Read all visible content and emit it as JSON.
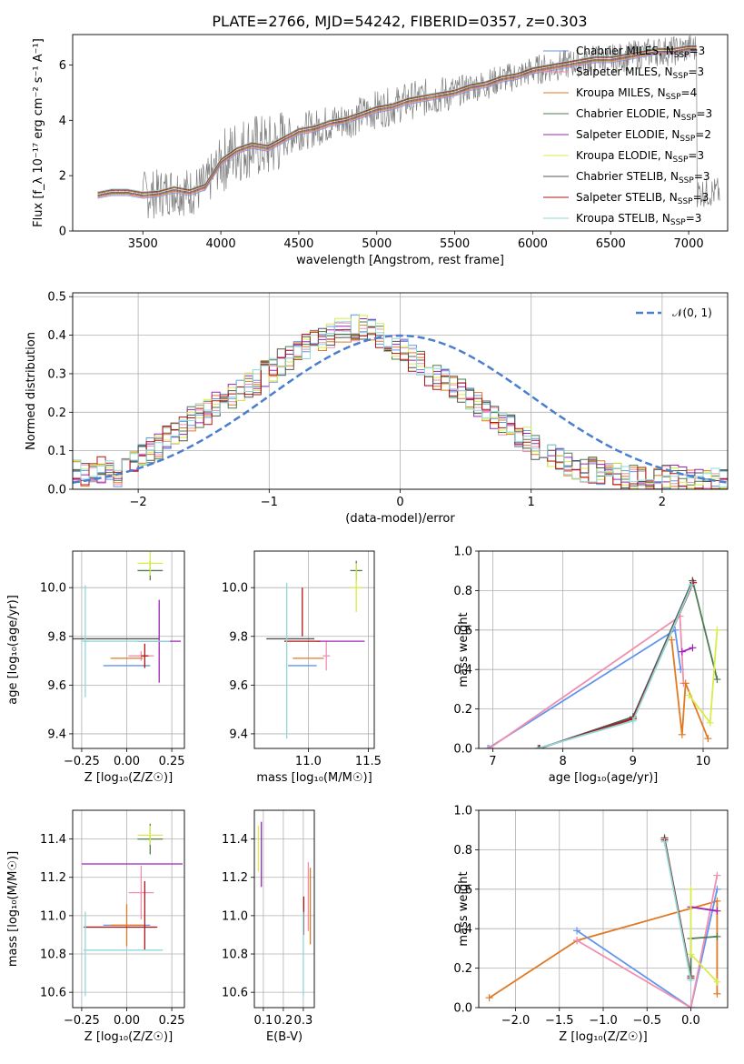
{
  "title": "PLATE=2766, MJD=54242, FIBERID=0357, z=0.303",
  "series": [
    {
      "name": "Chabrier MILES",
      "nssp": "3",
      "color": "#6495ed"
    },
    {
      "name": "Salpeter MILES",
      "nssp": "3",
      "color": "#f08fb0"
    },
    {
      "name": "Kroupa MILES",
      "nssp": "4",
      "color": "#e07a24"
    },
    {
      "name": "Chabrier ELODIE",
      "nssp": "3",
      "color": "#4e7d52"
    },
    {
      "name": "Salpeter ELODIE",
      "nssp": "2",
      "color": "#9b26b6"
    },
    {
      "name": "Kroupa ELODIE",
      "nssp": "3",
      "color": "#d8ec4a"
    },
    {
      "name": "Chabrier STELIB",
      "nssp": "3",
      "color": "#555555"
    },
    {
      "name": "Salpeter STELIB",
      "nssp": "3",
      "color": "#b01515"
    },
    {
      "name": "Kroupa STELIB",
      "nssp": "3",
      "color": "#8fd8d8"
    }
  ],
  "chart_data": [
    {
      "id": "spectrum",
      "type": "line",
      "xlabel": "wavelength [Angstrom, rest frame]",
      "ylabel": "Flux [f_λ 10⁻¹⁷ erg cm⁻² s⁻¹ A⁻¹]",
      "xlim": [
        3050,
        7250
      ],
      "ylim": [
        0,
        7.1
      ],
      "xticks": [
        3500,
        4000,
        4500,
        5000,
        5500,
        6000,
        6500,
        7000
      ],
      "yticks": [
        0,
        2,
        4,
        6
      ],
      "data_color": "#7f7f7f",
      "model_curve": {
        "x": [
          3210,
          3300,
          3400,
          3500,
          3600,
          3700,
          3800,
          3900,
          4000,
          4100,
          4200,
          4300,
          4400,
          4500,
          4600,
          4700,
          4800,
          4900,
          5000,
          5100,
          5200,
          5300,
          5400,
          5500,
          5600,
          5700,
          5800,
          5900,
          6000,
          6100,
          6200,
          6300,
          6400,
          6500,
          6600,
          6700,
          6800,
          6900,
          7000,
          7050
        ],
        "y": [
          1.3,
          1.4,
          1.4,
          1.3,
          1.35,
          1.5,
          1.4,
          1.6,
          2.5,
          2.9,
          3.1,
          3.0,
          3.3,
          3.6,
          3.7,
          3.9,
          4.0,
          4.2,
          4.4,
          4.5,
          4.7,
          4.8,
          4.9,
          5.0,
          5.2,
          5.3,
          5.5,
          5.6,
          5.8,
          5.9,
          6.0,
          6.1,
          6.2,
          6.2,
          6.3,
          6.4,
          6.5,
          6.5,
          6.6,
          6.6
        ]
      }
    },
    {
      "id": "residuals",
      "type": "histogram",
      "xlabel": "(data-model)/error",
      "ylabel": "Normed distribution",
      "xlim": [
        -2.5,
        2.5
      ],
      "ylim": [
        0,
        0.51
      ],
      "xticks": [
        -2,
        -1,
        0,
        1,
        2
      ],
      "yticks": [
        0.0,
        0.1,
        0.2,
        0.3,
        0.4,
        0.5
      ],
      "normal_label": "𝒩(0, 1)",
      "normal_color": "#4a7fd0",
      "bin_width": 0.1,
      "bin_start": -2.5,
      "hist_mean": [
        0.05,
        0.04,
        0.04,
        0.05,
        0.05,
        0.04,
        0.06,
        0.07,
        0.09,
        0.1,
        0.11,
        0.13,
        0.14,
        0.16,
        0.18,
        0.19,
        0.2,
        0.22,
        0.23,
        0.24,
        0.26,
        0.27,
        0.28,
        0.3,
        0.31,
        0.33,
        0.34,
        0.35,
        0.37,
        0.38,
        0.39,
        0.4,
        0.41,
        0.41,
        0.42,
        0.42,
        0.41,
        0.4,
        0.38,
        0.37,
        0.36,
        0.34,
        0.33,
        0.3,
        0.29,
        0.28,
        0.27,
        0.26,
        0.24,
        0.22,
        0.21,
        0.19,
        0.17,
        0.16,
        0.14,
        0.13,
        0.11,
        0.1,
        0.09,
        0.08,
        0.07,
        0.06,
        0.05,
        0.05,
        0.04,
        0.04,
        0.04,
        0.03,
        0.03,
        0.03,
        0.03,
        0.03,
        0.03,
        0.03,
        0.03,
        0.02,
        0.02,
        0.02,
        0.02,
        0.02
      ]
    },
    {
      "id": "age-vs-z",
      "type": "errorbar",
      "xlabel": "Z [log₁₀(Z/Z☉)]",
      "ylabel": "age  [log₁₀(age/yr)]",
      "xlim": [
        -0.3,
        0.32
      ],
      "ylim": [
        9.34,
        10.15
      ],
      "xticks": [
        -0.25,
        0.0,
        0.25
      ],
      "yticks": [
        9.4,
        9.6,
        9.8,
        10.0
      ],
      "points": [
        {
          "s": 0,
          "x": 0.0,
          "xe": 0.13,
          "y": 9.68,
          "ye": 0.0
        },
        {
          "s": 1,
          "x": 0.08,
          "xe": 0.07,
          "y": 9.72,
          "ye": 0.02
        },
        {
          "s": 2,
          "x": 0.0,
          "xe": 0.09,
          "y": 9.71,
          "ye": 0.0
        },
        {
          "s": 3,
          "x": 0.13,
          "xe": 0.07,
          "y": 10.07,
          "ye": 0.04
        },
        {
          "s": 4,
          "x": 0.18,
          "xe": 0.12,
          "y": 9.78,
          "ye": 0.17
        },
        {
          "s": 5,
          "x": 0.13,
          "xe": 0.07,
          "y": 10.1,
          "ye": 0.05
        },
        {
          "s": 6,
          "x": -0.07,
          "xe": 0.25,
          "y": 9.79,
          "ye": 0.0
        },
        {
          "s": 7,
          "x": 0.1,
          "xe": 0.02,
          "y": 9.72,
          "ye": 0.05
        },
        {
          "s": 8,
          "x": -0.23,
          "xe": 0.02,
          "y": 9.78,
          "ye": 0.23
        },
        {
          "s": 8,
          "x": -0.0,
          "xe": 0.24,
          "y": 9.78,
          "ye": 0.0
        }
      ]
    },
    {
      "id": "age-vs-mass",
      "type": "errorbar",
      "xlabel": "mass [log₁₀(M/M☉)]",
      "ylabel": "",
      "xlim": [
        10.55,
        11.55
      ],
      "ylim": [
        9.34,
        10.15
      ],
      "xticks": [
        11.0,
        11.5
      ],
      "yticks": [
        9.4,
        9.6,
        9.8,
        10.0
      ],
      "points": [
        {
          "s": 0,
          "x": 10.95,
          "xe": 0.12,
          "y": 9.68,
          "ye": 0.0
        },
        {
          "s": 1,
          "x": 11.15,
          "xe": 0.03,
          "y": 9.72,
          "ye": 0.06
        },
        {
          "s": 2,
          "x": 11.0,
          "xe": 0.13,
          "y": 9.71,
          "ye": 0.0
        },
        {
          "s": 3,
          "x": 11.4,
          "xe": 0.05,
          "y": 10.07,
          "ye": 0.04
        },
        {
          "s": 4,
          "x": 11.27,
          "xe": 0.2,
          "y": 9.78,
          "ye": 0.0
        },
        {
          "s": 5,
          "x": 11.4,
          "xe": 0.05,
          "y": 10.0,
          "ye": 0.1
        },
        {
          "s": 6,
          "x": 10.85,
          "xe": 0.2,
          "y": 9.79,
          "ye": 0.0
        },
        {
          "s": 7,
          "x": 10.95,
          "xe": 0.15,
          "y": 9.78,
          "ye": 0.0
        },
        {
          "s": 7,
          "x": 10.95,
          "xe": 0.0,
          "y": 9.9,
          "ye": 0.1
        },
        {
          "s": 8,
          "x": 10.82,
          "xe": 0.0,
          "y": 9.7,
          "ye": 0.32
        }
      ]
    },
    {
      "id": "weight-vs-age",
      "type": "line",
      "xlabel": "age  [log₁₀(age/yr)]",
      "ylabel": "mass weight",
      "xlim": [
        6.8,
        10.35
      ],
      "ylim": [
        0,
        1.0
      ],
      "xticks": [
        7,
        8,
        9,
        10
      ],
      "yticks": [
        0.0,
        0.2,
        0.4,
        0.6,
        0.8,
        1.0
      ],
      "series": [
        {
          "s": 0,
          "x": [
            6.93,
            9.6,
            9.68
          ],
          "y": [
            0.0,
            0.6,
            0.4
          ]
        },
        {
          "s": 1,
          "x": [
            6.95,
            9.67,
            9.72
          ],
          "y": [
            0.0,
            0.67,
            0.33
          ]
        },
        {
          "s": 2,
          "x": [
            9.55,
            9.7,
            9.75,
            10.07
          ],
          "y": [
            0.55,
            0.07,
            0.33,
            0.05
          ]
        },
        {
          "s": 3,
          "x": [
            7.65,
            9.0,
            9.85,
            10.2
          ],
          "y": [
            0.0,
            0.15,
            0.85,
            0.35
          ]
        },
        {
          "s": 4,
          "x": [
            9.7,
            9.85
          ],
          "y": [
            0.49,
            0.51
          ]
        },
        {
          "s": 5,
          "x": [
            9.8,
            10.1,
            10.2
          ],
          "y": [
            0.27,
            0.13,
            0.6
          ]
        },
        {
          "s": 6,
          "x": [
            7.67,
            9.0,
            9.85
          ],
          "y": [
            0.0,
            0.16,
            0.85
          ]
        },
        {
          "s": 7,
          "x": [
            7.66,
            9.0,
            9.86
          ],
          "y": [
            0.0,
            0.15,
            0.84
          ]
        },
        {
          "s": 8,
          "x": [
            7.64,
            9.0,
            9.84
          ],
          "y": [
            0.0,
            0.14,
            0.83
          ]
        }
      ]
    },
    {
      "id": "mass-vs-z",
      "type": "errorbar",
      "xlabel": "Z [log₁₀(Z/Z☉)]",
      "ylabel": "mass [log₁₀(M/M☉)]",
      "xlim": [
        -0.3,
        0.32
      ],
      "ylim": [
        10.52,
        11.55
      ],
      "xticks": [
        -0.25,
        0.0,
        0.25
      ],
      "yticks": [
        10.6,
        10.8,
        11.0,
        11.2,
        11.4
      ],
      "points": [
        {
          "s": 0,
          "x": 0.0,
          "xe": 0.13,
          "y": 10.95,
          "ye": 0.0
        },
        {
          "s": 1,
          "x": 0.08,
          "xe": 0.07,
          "y": 11.12,
          "ye": 0.14
        },
        {
          "s": 2,
          "x": 0.0,
          "xe": 0.09,
          "y": 10.95,
          "ye": 0.11
        },
        {
          "s": 3,
          "x": 0.13,
          "xe": 0.07,
          "y": 11.4,
          "ye": 0.08
        },
        {
          "s": 4,
          "x": 0.03,
          "xe": 0.28,
          "y": 11.27,
          "ye": 0.0
        },
        {
          "s": 5,
          "x": 0.13,
          "xe": 0.07,
          "y": 11.42,
          "ye": 0.05
        },
        {
          "s": 6,
          "x": -0.04,
          "xe": 0.2,
          "y": 10.94,
          "ye": 0.0
        },
        {
          "s": 7,
          "x": -0.03,
          "xe": 0.2,
          "y": 10.94,
          "ye": 0.0
        },
        {
          "s": 7,
          "x": 0.1,
          "xe": 0.0,
          "y": 11.0,
          "ye": 0.18
        },
        {
          "s": 8,
          "x": -0.02,
          "xe": 0.22,
          "y": 10.82,
          "ye": 0.0
        },
        {
          "s": 8,
          "x": -0.23,
          "xe": 0.0,
          "y": 10.8,
          "ye": 0.22
        }
      ]
    },
    {
      "id": "mass-vs-ebv",
      "type": "errorbar",
      "xlabel": "E(B-V)",
      "ylabel": "",
      "xlim": [
        0.055,
        0.355
      ],
      "ylim": [
        10.52,
        11.55
      ],
      "xticks": [
        0.1,
        0.2,
        0.3
      ],
      "yticks": [
        10.6,
        10.8,
        11.0,
        11.2,
        11.4
      ],
      "points": [
        {
          "s": 5,
          "x": 0.075,
          "xe": 0.0,
          "y": 11.35,
          "ye": 0.12
        },
        {
          "s": 4,
          "x": 0.09,
          "xe": 0.0,
          "y": 11.32,
          "ye": 0.17
        },
        {
          "s": 7,
          "x": 0.302,
          "xe": 0.0,
          "y": 11.0,
          "ye": 0.1
        },
        {
          "s": 8,
          "x": 0.3,
          "xe": 0.0,
          "y": 10.8,
          "ye": 0.22
        },
        {
          "s": 1,
          "x": 0.325,
          "xe": 0.0,
          "y": 11.1,
          "ye": 0.18
        },
        {
          "s": 2,
          "x": 0.335,
          "xe": 0.0,
          "y": 11.05,
          "ye": 0.2
        }
      ]
    },
    {
      "id": "weight-vs-z",
      "type": "line",
      "xlabel": "Z [log₁₀(Z/Z☉)]",
      "ylabel": "mass weight",
      "xlim": [
        -2.42,
        0.42
      ],
      "ylim": [
        0,
        1.0
      ],
      "xticks": [
        -2.0,
        -1.5,
        -1.0,
        -0.5,
        0.0
      ],
      "yticks": [
        0.0,
        0.2,
        0.4,
        0.6,
        0.8,
        1.0
      ],
      "series": [
        {
          "s": 2,
          "x": [
            -2.3,
            -1.3,
            0.3,
            0.3
          ],
          "y": [
            0.05,
            0.34,
            0.54,
            0.07
          ]
        },
        {
          "s": 0,
          "x": [
            -1.3,
            0.0,
            0.3
          ],
          "y": [
            0.39,
            0.0,
            0.6
          ]
        },
        {
          "s": 1,
          "x": [
            -1.3,
            0.0,
            0.3
          ],
          "y": [
            0.34,
            0.0,
            0.67
          ]
        },
        {
          "s": 3,
          "x": [
            -0.3,
            0.0,
            0.0,
            0.3
          ],
          "y": [
            0.85,
            0.15,
            0.35,
            0.36
          ]
        },
        {
          "s": 4,
          "x": [
            0.0,
            0.3
          ],
          "y": [
            0.51,
            0.49
          ]
        },
        {
          "s": 5,
          "x": [
            0.0,
            0.0,
            0.3
          ],
          "y": [
            0.6,
            0.27,
            0.13
          ]
        },
        {
          "s": 6,
          "x": [
            -0.3,
            0.0
          ],
          "y": [
            0.86,
            0.16
          ]
        },
        {
          "s": 7,
          "x": [
            -0.3,
            0.0
          ],
          "y": [
            0.85,
            0.15
          ]
        },
        {
          "s": 8,
          "x": [
            -0.3,
            0.0
          ],
          "y": [
            0.84,
            0.14
          ]
        }
      ]
    }
  ]
}
